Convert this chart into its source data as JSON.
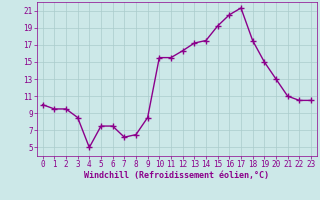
{
  "x": [
    0,
    1,
    2,
    3,
    4,
    5,
    6,
    7,
    8,
    9,
    10,
    11,
    12,
    13,
    14,
    15,
    16,
    17,
    18,
    19,
    20,
    21,
    22,
    23
  ],
  "y": [
    10.0,
    9.5,
    9.5,
    8.5,
    5.0,
    7.5,
    7.5,
    6.2,
    6.5,
    8.5,
    15.5,
    15.5,
    16.3,
    17.2,
    17.5,
    19.2,
    20.5,
    21.3,
    17.5,
    15.0,
    13.0,
    11.0,
    10.5,
    10.5
  ],
  "line_color": "#8b008b",
  "marker": "+",
  "markersize": 4,
  "background_color": "#cce8e8",
  "grid_color": "#aacccc",
  "xlabel": "Windchill (Refroidissement éolien,°C)",
  "xlim": [
    -0.5,
    23.5
  ],
  "ylim": [
    4,
    22
  ],
  "yticks": [
    5,
    7,
    9,
    11,
    13,
    15,
    17,
    19,
    21
  ],
  "xticks": [
    0,
    1,
    2,
    3,
    4,
    5,
    6,
    7,
    8,
    9,
    10,
    11,
    12,
    13,
    14,
    15,
    16,
    17,
    18,
    19,
    20,
    21,
    22,
    23
  ],
  "tick_color": "#8b008b",
  "label_color": "#8b008b",
  "label_fontsize": 6.0,
  "tick_fontsize": 5.5,
  "linewidth": 1.0
}
